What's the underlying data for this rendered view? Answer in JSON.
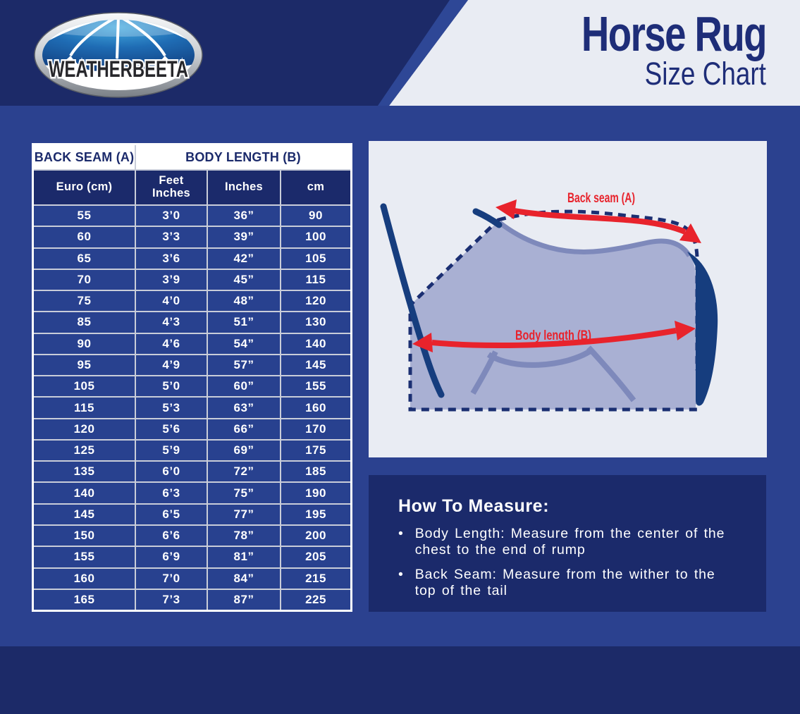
{
  "brand": {
    "logo_text": "WEATHERBEETA"
  },
  "header": {
    "title_line1": "Horse Rug",
    "title_line2": "Size Chart"
  },
  "size_table": {
    "group_headers": [
      {
        "label": "BACK SEAM (A)",
        "span": 1
      },
      {
        "label": "BODY LENGTH (B)",
        "span": 3
      }
    ],
    "columns": [
      "Euro (cm)",
      "Feet\nInches",
      "Inches",
      "cm"
    ],
    "rows": [
      [
        "55",
        "3’0",
        "36”",
        "90"
      ],
      [
        "60",
        "3’3",
        "39”",
        "100"
      ],
      [
        "65",
        "3’6",
        "42”",
        "105"
      ],
      [
        "70",
        "3’9",
        "45”",
        "115"
      ],
      [
        "75",
        "4’0",
        "48”",
        "120"
      ],
      [
        "85",
        "4’3",
        "51”",
        "130"
      ],
      [
        "90",
        "4’6",
        "54”",
        "140"
      ],
      [
        "95",
        "4’9",
        "57”",
        "145"
      ],
      [
        "105",
        "5’0",
        "60”",
        "155"
      ],
      [
        "115",
        "5’3",
        "63”",
        "160"
      ],
      [
        "120",
        "5’6",
        "66”",
        "170"
      ],
      [
        "125",
        "5’9",
        "69”",
        "175"
      ],
      [
        "135",
        "6’0",
        "72”",
        "185"
      ],
      [
        "140",
        "6’3",
        "75”",
        "190"
      ],
      [
        "145",
        "6’5",
        "77”",
        "195"
      ],
      [
        "150",
        "6’6",
        "78”",
        "200"
      ],
      [
        "155",
        "6’9",
        "81”",
        "205"
      ],
      [
        "160",
        "7’0",
        "84”",
        "215"
      ],
      [
        "165",
        "7’3",
        "87”",
        "225"
      ]
    ]
  },
  "diagram": {
    "back_seam_label": "Back seam (A)",
    "body_length_label": "Body length (B)"
  },
  "how_to_measure": {
    "heading": "How To Measure:",
    "bullet_glyph": "•",
    "bullets": [
      "Body Length: Measure from the center of the\nchest to the end of rump",
      "Back Seam: Measure from the wither to the\ntop of the tail"
    ]
  },
  "colors": {
    "brand_navy": "#1c2a68",
    "page_blue": "#2b418f",
    "table_cell_blue": "#28418f",
    "deep_navy_panel": "#1b2a6b",
    "light_panel": "#e9ecf3",
    "accent_red": "#e8232c",
    "title_navy": "#1e2d78",
    "horse_body": "#a9b0d3",
    "horse_lines": "#7e89bb",
    "gridline_silver": "#c9cdd9"
  }
}
